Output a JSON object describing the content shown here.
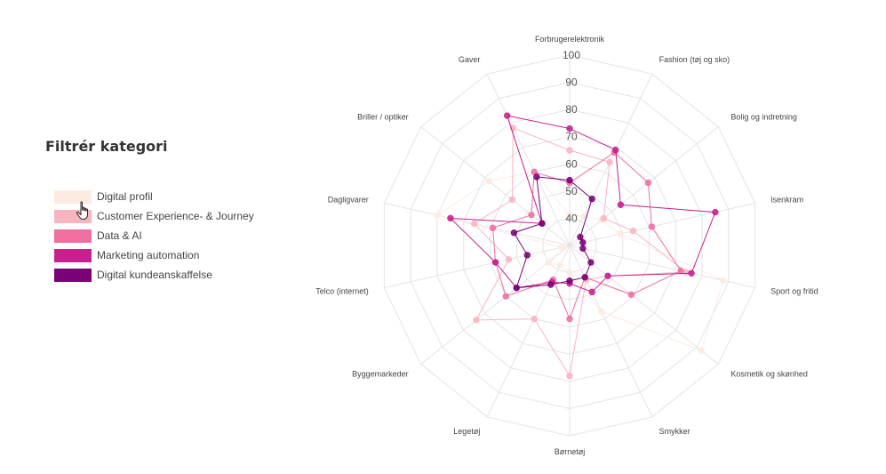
{
  "filter": {
    "title": "Filtrér kategori",
    "legend": [
      {
        "label": "Digital profil",
        "color": "#fdeae1"
      },
      {
        "label": "Customer Experience- & Journey",
        "color": "#f8b5c0"
      },
      {
        "label": "Data & AI",
        "color": "#f06ea0"
      },
      {
        "label": "Marketing automation",
        "color": "#c71f8e"
      },
      {
        "label": "Digital kundeanskaffelse",
        "color": "#7a0177"
      }
    ]
  },
  "chart_data": {
    "type": "radar",
    "categories": [
      "Forbrugerelektronik",
      "Fashion (tøj og sko)",
      "Bolig og indretning",
      "Isenkram",
      "Sport og fritid",
      "Kosmetik og skønhed",
      "Smykker",
      "Børnetøj",
      "Legetøj",
      "Byggemarkeder",
      "Telco (internet)",
      "Dagligvarer",
      "Briller / optiker",
      "Gaver"
    ],
    "rlim": [
      30,
      100
    ],
    "ticks": [
      "40",
      "50",
      "60",
      "70",
      "80",
      "90",
      "100"
    ],
    "grid": true,
    "legend_position": "left",
    "series": [
      {
        "name": "Digital profil",
        "color": "#fdeae1",
        "values": [
          41,
          42,
          45,
          49,
          88,
          92,
          57,
          40,
          38,
          40,
          33,
          80,
          68,
          60
        ]
      },
      {
        "name": "Customer Experience- & Journey",
        "color": "#f8b5c0",
        "values": [
          65,
          64,
          46,
          54,
          74,
          48,
          44,
          78,
          60,
          74,
          53,
          66,
          57,
          78
        ]
      },
      {
        "name": "Data & AI",
        "color": "#f06ea0",
        "values": [
          53,
          68,
          67,
          61,
          72,
          59,
          43,
          57,
          44,
          60,
          58,
          59,
          48,
          60
        ]
      },
      {
        "name": "Marketing automation",
        "color": "#c71f8e",
        "values": [
          73,
          69,
          54,
          85,
          76,
          48,
          49,
          44,
          45,
          55,
          58,
          75,
          43,
          83
        ]
      },
      {
        "name": "Digital kundeanskaffelse",
        "color": "#7a0177",
        "values": [
          54,
          49,
          35,
          35,
          35,
          40,
          43,
          43,
          46,
          55,
          46,
          51,
          43,
          58
        ]
      }
    ]
  }
}
